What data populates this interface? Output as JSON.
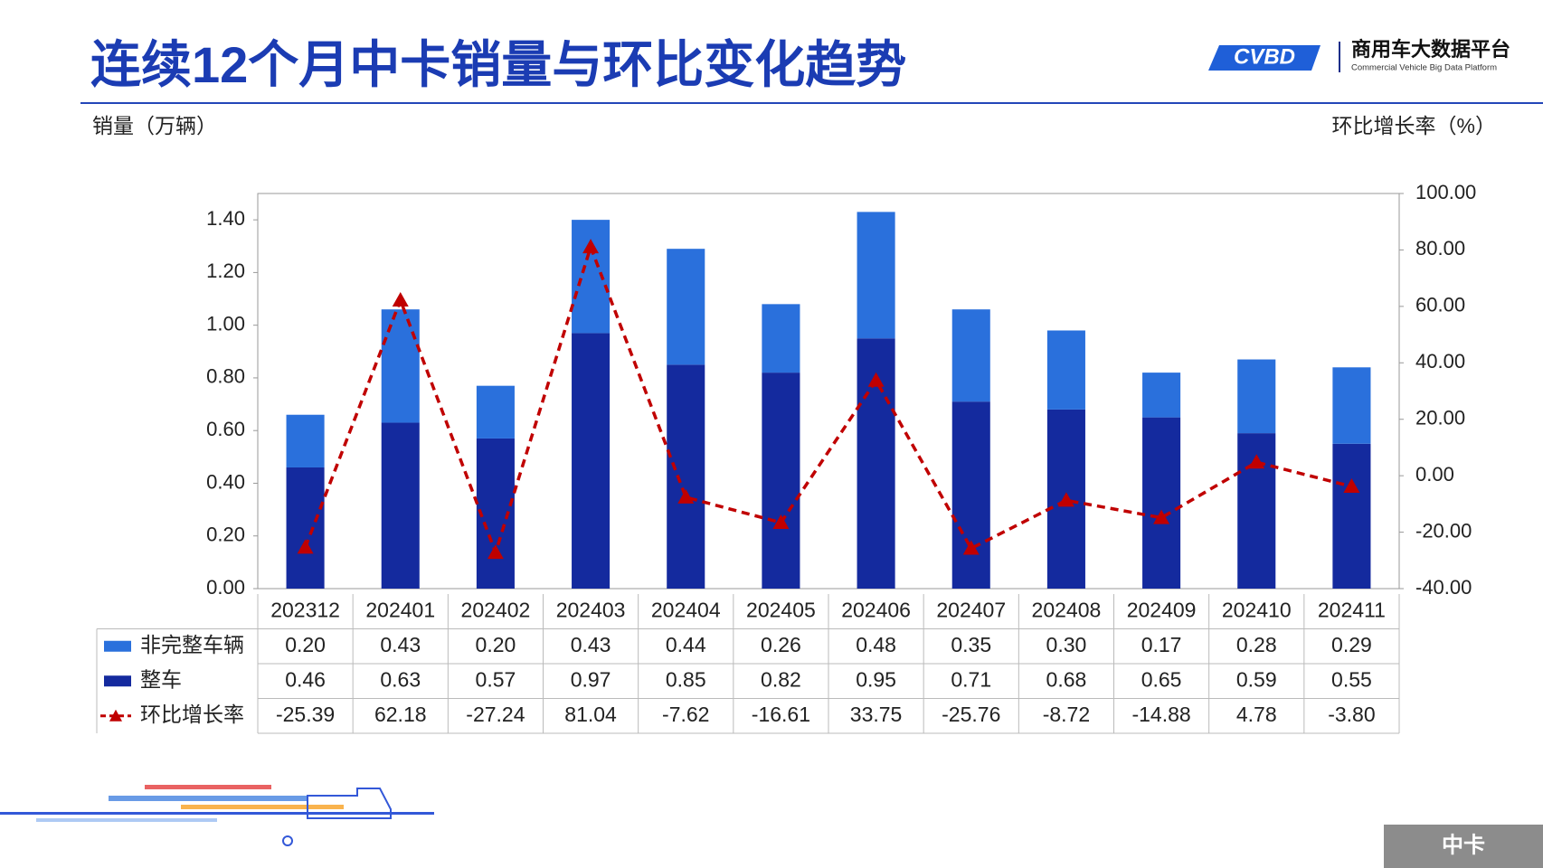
{
  "header": {
    "title": "连续12个月中卡销量与环比变化趋势",
    "logo_name": "商用车大数据平台",
    "logo_subtitle": "Commercial Vehicle Big Data Platform"
  },
  "footer_tag": "中卡",
  "chart_data": {
    "type": "bar-line",
    "y_label": "销量（万辆）",
    "y2_label": "环比增长率（%）",
    "categories": [
      "202312",
      "202401",
      "202402",
      "202403",
      "202404",
      "202405",
      "202406",
      "202407",
      "202408",
      "202409",
      "202410",
      "202411"
    ],
    "ylim": [
      0,
      1.5
    ],
    "yticks": [
      {
        "value": 0,
        "label": "0.00"
      },
      {
        "value": 0.2,
        "label": "0.20"
      },
      {
        "value": 0.4,
        "label": "0.40"
      },
      {
        "value": 0.6,
        "label": "0.60"
      },
      {
        "value": 0.8,
        "label": "0.80"
      },
      {
        "value": 1,
        "label": "1.00"
      },
      {
        "value": 1.2,
        "label": "1.20"
      },
      {
        "value": 1.4,
        "label": "1.40"
      }
    ],
    "y2lim": [
      -40,
      100
    ],
    "y2ticks": [
      {
        "value": -40,
        "label": "-40.00"
      },
      {
        "value": -20,
        "label": "-20.00"
      },
      {
        "value": 0,
        "label": "0.00"
      },
      {
        "value": 20,
        "label": "20.00"
      },
      {
        "value": 40,
        "label": "40.00"
      },
      {
        "value": 60,
        "label": "60.00"
      },
      {
        "value": 80,
        "label": "80.00"
      },
      {
        "value": 100,
        "label": "100.00"
      }
    ],
    "series": [
      {
        "name": "非完整车辆",
        "color": "#2a70dc",
        "kind": "bar",
        "values": [
          0.2,
          0.43,
          0.2,
          0.43,
          0.44,
          0.26,
          0.48,
          0.35,
          0.3,
          0.17,
          0.28,
          0.29
        ],
        "value_labels": [
          "0.20",
          "0.43",
          "0.20",
          "0.43",
          "0.44",
          "0.26",
          "0.48",
          "0.35",
          "0.30",
          "0.17",
          "0.28",
          "0.29"
        ]
      },
      {
        "name": "整车",
        "color": "#142a9e",
        "kind": "bar",
        "values": [
          0.46,
          0.63,
          0.57,
          0.97,
          0.85,
          0.82,
          0.95,
          0.71,
          0.68,
          0.65,
          0.59,
          0.55
        ],
        "value_labels": [
          "0.46",
          "0.63",
          "0.57",
          "0.97",
          "0.85",
          "0.82",
          "0.95",
          "0.71",
          "0.68",
          "0.65",
          "0.59",
          "0.55"
        ]
      },
      {
        "name": "环比增长率",
        "color": "#c00000",
        "kind": "line",
        "axis": "y2",
        "values": [
          -25.39,
          62.18,
          -27.24,
          81.04,
          -7.62,
          -16.61,
          33.75,
          -25.76,
          -8.72,
          -14.88,
          4.78,
          -3.8
        ],
        "value_labels": [
          "-25.39",
          "62.18",
          "-27.24",
          "81.04",
          "-7.62",
          "-16.61",
          "33.75",
          "-25.76",
          "-8.72",
          "-14.88",
          "4.78",
          "-3.80"
        ]
      }
    ]
  }
}
